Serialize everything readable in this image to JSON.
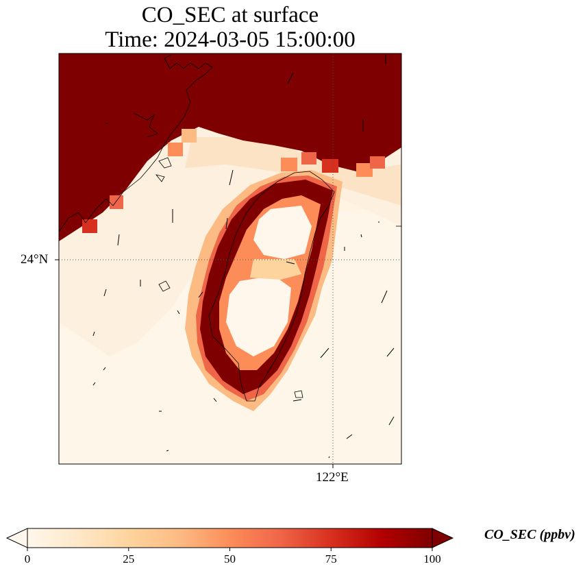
{
  "title": {
    "line1": "CO_SEC at surface",
    "line2": "Time: 2024-03-05 15:00:00"
  },
  "map": {
    "extent": {
      "lon": [
        120.8,
        122.25
      ],
      "lat": [
        21.8,
        25.2
      ]
    },
    "gridlines": {
      "lon_label": "122°E",
      "lat_label": "24°N",
      "style": "dotted"
    },
    "features": [
      "coastline",
      "wind-vectors"
    ],
    "colormap": "OrRd"
  },
  "colorbar": {
    "label": "CO_SEC (ppbv)",
    "ticks": [
      "0",
      "25",
      "50",
      "75",
      "100"
    ],
    "range": [
      0,
      100
    ],
    "extend": "both",
    "colors": [
      "#fff7ec",
      "#fee8c8",
      "#fdd49e",
      "#fdbb84",
      "#fc8d59",
      "#ef6548",
      "#d7301f",
      "#b30000",
      "#7f0000"
    ]
  }
}
